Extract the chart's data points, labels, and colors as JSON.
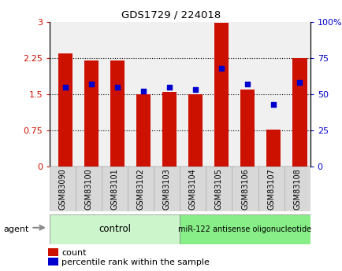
{
  "title": "GDS1729 / 224018",
  "samples": [
    "GSM83090",
    "GSM83100",
    "GSM83101",
    "GSM83102",
    "GSM83103",
    "GSM83104",
    "GSM83105",
    "GSM83106",
    "GSM83107",
    "GSM83108"
  ],
  "counts": [
    2.35,
    2.2,
    2.2,
    1.5,
    1.55,
    1.5,
    2.97,
    1.6,
    0.77,
    2.25
  ],
  "percentiles": [
    55,
    57,
    55,
    52,
    55,
    53,
    68,
    57,
    43,
    58
  ],
  "bar_color": "#cc1100",
  "dot_color": "#0000cc",
  "left_ylim": [
    0,
    3
  ],
  "right_ylim": [
    0,
    100
  ],
  "left_yticks": [
    0,
    0.75,
    1.5,
    2.25,
    3
  ],
  "right_yticks": [
    0,
    25,
    50,
    75,
    100
  ],
  "left_yticklabels": [
    "0",
    "0.75",
    "1.5",
    "2.25",
    "3"
  ],
  "right_yticklabels": [
    "0",
    "25",
    "50",
    "75",
    "100%"
  ],
  "control_label": "control",
  "treatment_label": "miR-122 antisense oligonucleotide",
  "agent_label": "agent",
  "legend_count_label": "count",
  "legend_pct_label": "percentile rank within the sample",
  "bg_color": "#ffffff",
  "plot_bg": "#f0f0f0",
  "bar_width": 0.55,
  "control_bg": "#ccf5cc",
  "treatment_bg": "#88ee88",
  "xtick_bg": "#d8d8d8",
  "grid_color": "#000000",
  "bar_xlim": [
    -0.6,
    9.4
  ]
}
